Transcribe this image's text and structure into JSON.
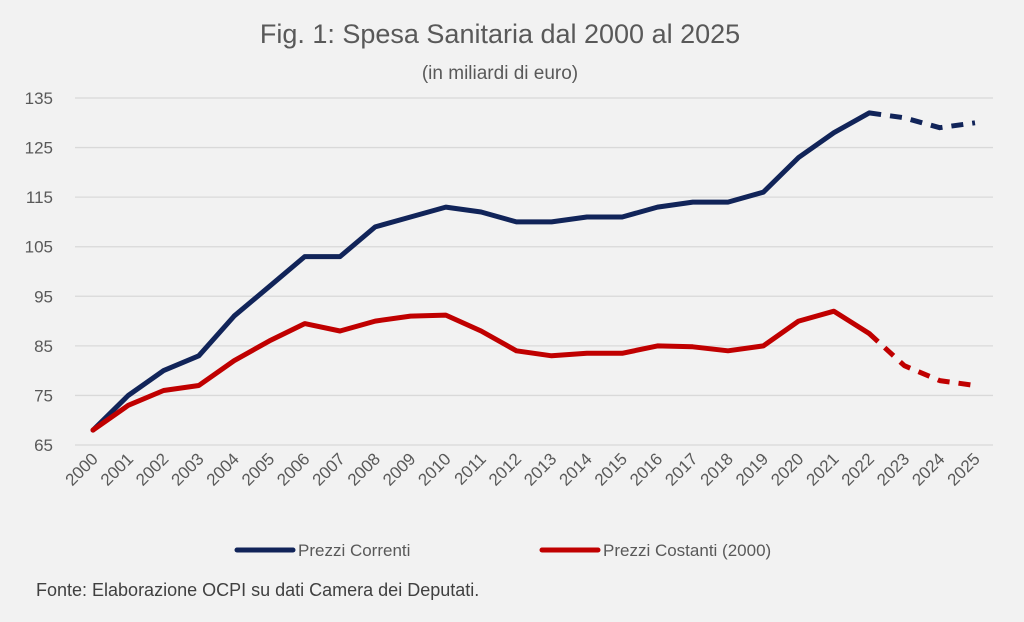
{
  "chart_data": {
    "type": "line",
    "title": "Fig. 1: Spesa Sanitaria dal 2000 al 2025",
    "subtitle": "(in miliardi di euro)",
    "source": "Fonte: Elaborazione OCPI su dati Camera dei Deputati.",
    "xlabel": "",
    "ylabel": "",
    "x": [
      "2000",
      "2001",
      "2002",
      "2003",
      "2004",
      "2005",
      "2006",
      "2007",
      "2008",
      "2009",
      "2010",
      "2011",
      "2012",
      "2013",
      "2014",
      "2015",
      "2016",
      "2017",
      "2018",
      "2019",
      "2020",
      "2021",
      "2022",
      "2023",
      "2024",
      "2025"
    ],
    "ylim": [
      65,
      135
    ],
    "yticks": [
      65,
      75,
      85,
      95,
      105,
      115,
      125,
      135
    ],
    "grid": true,
    "legend_position": "bottom",
    "projection_start": "2022",
    "series": [
      {
        "name": "Prezzi Correnti",
        "color": "#112459",
        "values": [
          68,
          75,
          80,
          83,
          91,
          97,
          103,
          103,
          109,
          111,
          113,
          112,
          110,
          110,
          111,
          111,
          113,
          114,
          114,
          116,
          123,
          128,
          132,
          131,
          129,
          130
        ]
      },
      {
        "name": "Prezzi Costanti (2000)",
        "color": "#c00000",
        "values": [
          68,
          73,
          76,
          77,
          82,
          86,
          89.5,
          88,
          90,
          91,
          91.2,
          88,
          84,
          83,
          83.5,
          83.5,
          85,
          84.8,
          84,
          85,
          90,
          92,
          87.5,
          81,
          78,
          77
        ]
      }
    ]
  }
}
